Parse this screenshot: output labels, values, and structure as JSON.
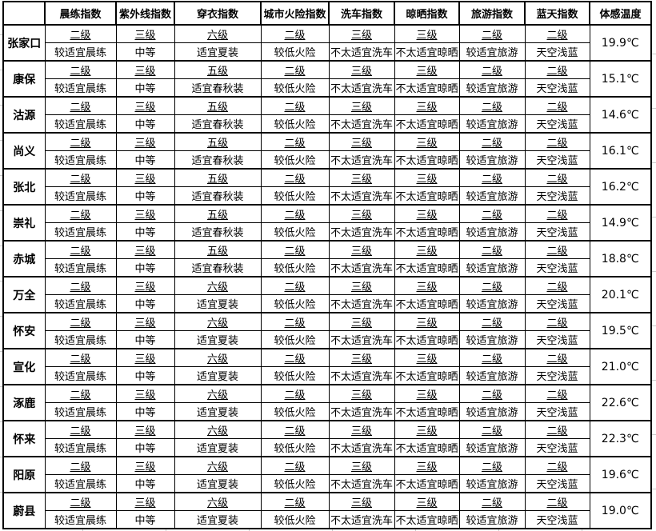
{
  "colors": {
    "background": "#ffffff",
    "table_border": "#000000",
    "text": "#000000",
    "grid_stub": "#cccccc"
  },
  "table": {
    "columns": [
      "",
      "晨练指数",
      "紫外线指数",
      "穿衣指数",
      "城市火险指数",
      "洗车指数",
      "晾晒指数",
      "旅游指数",
      "蓝天指数",
      "体感温度"
    ],
    "rows": [
      {
        "city": "张家口",
        "indices": [
          {
            "level": "二级",
            "desc": "较适宜晨练"
          },
          {
            "level": "三级",
            "desc": "中等"
          },
          {
            "level": "六级",
            "desc": "适宜夏装"
          },
          {
            "level": "二级",
            "desc": "较低火险"
          },
          {
            "level": "三级",
            "desc": "不太适宜洗车"
          },
          {
            "level": "三级",
            "desc": "不太适宜晾晒"
          },
          {
            "level": "二级",
            "desc": "较适宜旅游"
          },
          {
            "level": "二级",
            "desc": "天空浅蓝"
          }
        ],
        "feels_like": "19.9℃"
      },
      {
        "city": "康保",
        "indices": [
          {
            "level": "二级",
            "desc": "较适宜晨练"
          },
          {
            "level": "三级",
            "desc": "中等"
          },
          {
            "level": "五级",
            "desc": "适宜春秋装"
          },
          {
            "level": "二级",
            "desc": "较低火险"
          },
          {
            "level": "三级",
            "desc": "不太适宜洗车"
          },
          {
            "level": "三级",
            "desc": "不太适宜晾晒"
          },
          {
            "level": "二级",
            "desc": "较适宜旅游"
          },
          {
            "level": "二级",
            "desc": "天空浅蓝"
          }
        ],
        "feels_like": "15.1℃"
      },
      {
        "city": "沽源",
        "indices": [
          {
            "level": "二级",
            "desc": "较适宜晨练"
          },
          {
            "level": "三级",
            "desc": "中等"
          },
          {
            "level": "五级",
            "desc": "适宜春秋装"
          },
          {
            "level": "二级",
            "desc": "较低火险"
          },
          {
            "level": "三级",
            "desc": "不太适宜洗车"
          },
          {
            "level": "三级",
            "desc": "不太适宜晾晒"
          },
          {
            "level": "二级",
            "desc": "较适宜旅游"
          },
          {
            "level": "二级",
            "desc": "天空浅蓝"
          }
        ],
        "feels_like": "14.6℃"
      },
      {
        "city": "尚义",
        "indices": [
          {
            "level": "二级",
            "desc": "较适宜晨练"
          },
          {
            "level": "三级",
            "desc": "中等"
          },
          {
            "level": "五级",
            "desc": "适宜春秋装"
          },
          {
            "level": "二级",
            "desc": "较低火险"
          },
          {
            "level": "三级",
            "desc": "不太适宜洗车"
          },
          {
            "level": "三级",
            "desc": "不太适宜晾晒"
          },
          {
            "level": "二级",
            "desc": "较适宜旅游"
          },
          {
            "level": "二级",
            "desc": "天空浅蓝"
          }
        ],
        "feels_like": "16.1℃"
      },
      {
        "city": "张北",
        "indices": [
          {
            "level": "二级",
            "desc": "较适宜晨练"
          },
          {
            "level": "三级",
            "desc": "中等"
          },
          {
            "level": "五级",
            "desc": "适宜春秋装"
          },
          {
            "level": "二级",
            "desc": "较低火险"
          },
          {
            "level": "三级",
            "desc": "不太适宜洗车"
          },
          {
            "level": "三级",
            "desc": "不太适宜晾晒"
          },
          {
            "level": "二级",
            "desc": "较适宜旅游"
          },
          {
            "level": "二级",
            "desc": "天空浅蓝"
          }
        ],
        "feels_like": "16.2℃"
      },
      {
        "city": "崇礼",
        "indices": [
          {
            "level": "二级",
            "desc": "较适宜晨练"
          },
          {
            "level": "三级",
            "desc": "中等"
          },
          {
            "level": "五级",
            "desc": "适宜春秋装"
          },
          {
            "level": "二级",
            "desc": "较低火险"
          },
          {
            "level": "三级",
            "desc": "不太适宜洗车"
          },
          {
            "level": "三级",
            "desc": "不太适宜晾晒"
          },
          {
            "level": "二级",
            "desc": "较适宜旅游"
          },
          {
            "level": "二级",
            "desc": "天空浅蓝"
          }
        ],
        "feels_like": "14.9℃"
      },
      {
        "city": "赤城",
        "indices": [
          {
            "level": "二级",
            "desc": "较适宜晨练"
          },
          {
            "level": "三级",
            "desc": "中等"
          },
          {
            "level": "五级",
            "desc": "适宜春秋装"
          },
          {
            "level": "二级",
            "desc": "较低火险"
          },
          {
            "level": "三级",
            "desc": "不太适宜洗车"
          },
          {
            "level": "三级",
            "desc": "不太适宜晾晒"
          },
          {
            "level": "二级",
            "desc": "较适宜旅游"
          },
          {
            "level": "二级",
            "desc": "天空浅蓝"
          }
        ],
        "feels_like": "18.8℃"
      },
      {
        "city": "万全",
        "indices": [
          {
            "level": "二级",
            "desc": "较适宜晨练"
          },
          {
            "level": "三级",
            "desc": "中等"
          },
          {
            "level": "六级",
            "desc": "适宜夏装"
          },
          {
            "level": "二级",
            "desc": "较低火险"
          },
          {
            "level": "三级",
            "desc": "不太适宜洗车"
          },
          {
            "level": "三级",
            "desc": "不太适宜晾晒"
          },
          {
            "level": "二级",
            "desc": "较适宜旅游"
          },
          {
            "level": "二级",
            "desc": "天空浅蓝"
          }
        ],
        "feels_like": "20.1℃"
      },
      {
        "city": "怀安",
        "indices": [
          {
            "level": "二级",
            "desc": "较适宜晨练"
          },
          {
            "level": "三级",
            "desc": "中等"
          },
          {
            "level": "六级",
            "desc": "适宜夏装"
          },
          {
            "level": "二级",
            "desc": "较低火险"
          },
          {
            "level": "三级",
            "desc": "不太适宜洗车"
          },
          {
            "level": "三级",
            "desc": "不太适宜晾晒"
          },
          {
            "level": "二级",
            "desc": "较适宜旅游"
          },
          {
            "level": "二级",
            "desc": "天空浅蓝"
          }
        ],
        "feels_like": "19.5℃"
      },
      {
        "city": "宣化",
        "indices": [
          {
            "level": "二级",
            "desc": "较适宜晨练"
          },
          {
            "level": "三级",
            "desc": "中等"
          },
          {
            "level": "六级",
            "desc": "适宜夏装"
          },
          {
            "level": "二级",
            "desc": "较低火险"
          },
          {
            "level": "三级",
            "desc": "不太适宜洗车"
          },
          {
            "level": "三级",
            "desc": "不太适宜晾晒"
          },
          {
            "level": "二级",
            "desc": "较适宜旅游"
          },
          {
            "level": "二级",
            "desc": "天空浅蓝"
          }
        ],
        "feels_like": "21.0℃"
      },
      {
        "city": "涿鹿",
        "indices": [
          {
            "level": "二级",
            "desc": "较适宜晨练"
          },
          {
            "level": "三级",
            "desc": "中等"
          },
          {
            "level": "六级",
            "desc": "适宜夏装"
          },
          {
            "level": "二级",
            "desc": "较低火险"
          },
          {
            "level": "三级",
            "desc": "不太适宜洗车"
          },
          {
            "level": "三级",
            "desc": "不太适宜晾晒"
          },
          {
            "level": "二级",
            "desc": "较适宜旅游"
          },
          {
            "level": "二级",
            "desc": "天空浅蓝"
          }
        ],
        "feels_like": "22.6℃"
      },
      {
        "city": "怀来",
        "indices": [
          {
            "level": "二级",
            "desc": "较适宜晨练"
          },
          {
            "level": "三级",
            "desc": "中等"
          },
          {
            "level": "六级",
            "desc": "适宜夏装"
          },
          {
            "level": "二级",
            "desc": "较低火险"
          },
          {
            "level": "三级",
            "desc": "不太适宜洗车"
          },
          {
            "level": "三级",
            "desc": "不太适宜晾晒"
          },
          {
            "level": "二级",
            "desc": "较适宜旅游"
          },
          {
            "level": "二级",
            "desc": "天空浅蓝"
          }
        ],
        "feels_like": "22.3℃"
      },
      {
        "city": "阳原",
        "indices": [
          {
            "level": "二级",
            "desc": "较适宜晨练"
          },
          {
            "level": "三级",
            "desc": "中等"
          },
          {
            "level": "六级",
            "desc": "适宜夏装"
          },
          {
            "level": "二级",
            "desc": "较低火险"
          },
          {
            "level": "三级",
            "desc": "不太适宜洗车"
          },
          {
            "level": "三级",
            "desc": "不太适宜晾晒"
          },
          {
            "level": "二级",
            "desc": "较适宜旅游"
          },
          {
            "level": "二级",
            "desc": "天空浅蓝"
          }
        ],
        "feels_like": "19.6℃"
      },
      {
        "city": "蔚县",
        "indices": [
          {
            "level": "二级",
            "desc": "较适宜晨练"
          },
          {
            "level": "三级",
            "desc": "中等"
          },
          {
            "level": "六级",
            "desc": "适宜夏装"
          },
          {
            "level": "二级",
            "desc": "较低火险"
          },
          {
            "level": "三级",
            "desc": "不太适宜洗车"
          },
          {
            "level": "三级",
            "desc": "不太适宜晾晒"
          },
          {
            "level": "二级",
            "desc": "较适宜旅游"
          },
          {
            "level": "二级",
            "desc": "天空浅蓝"
          }
        ],
        "feels_like": "19.0℃"
      }
    ]
  }
}
